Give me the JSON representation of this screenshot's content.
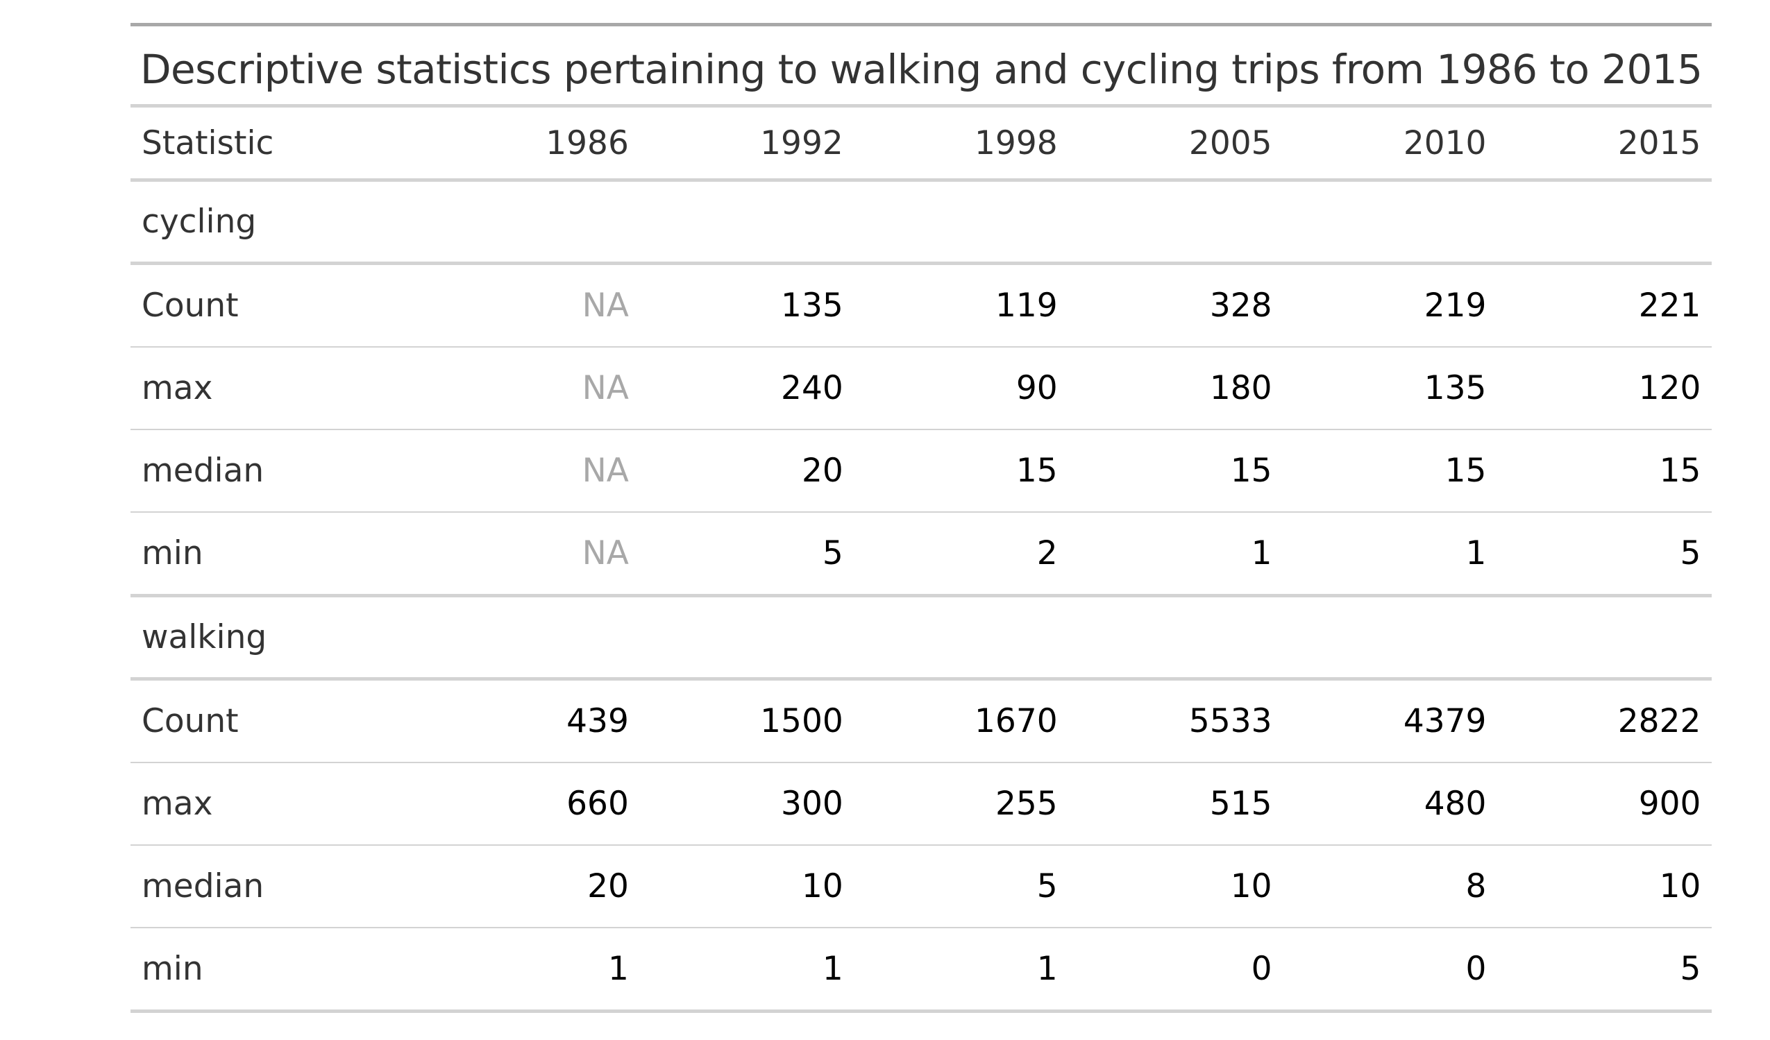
{
  "table": {
    "caption": "Descriptive statistics pertaining to walking and cycling trips from 1986 to 2015",
    "columns": [
      "Statistic",
      "1986",
      "1992",
      "1998",
      "2005",
      "2010",
      "2015"
    ],
    "groups": [
      {
        "name": "cycling",
        "rows": [
          {
            "stat": "Count",
            "values": [
              "NA",
              "135",
              "119",
              "328",
              "219",
              "221"
            ]
          },
          {
            "stat": "max",
            "values": [
              "NA",
              "240",
              "90",
              "180",
              "135",
              "120"
            ]
          },
          {
            "stat": "median",
            "values": [
              "NA",
              "20",
              "15",
              "15",
              "15",
              "15"
            ]
          },
          {
            "stat": "min",
            "values": [
              "NA",
              "5",
              "2",
              "1",
              "1",
              "5"
            ]
          }
        ]
      },
      {
        "name": "walking",
        "rows": [
          {
            "stat": "Count",
            "values": [
              "439",
              "1500",
              "1670",
              "5533",
              "4379",
              "2822"
            ]
          },
          {
            "stat": "max",
            "values": [
              "660",
              "300",
              "255",
              "515",
              "480",
              "900"
            ]
          },
          {
            "stat": "median",
            "values": [
              "20",
              "10",
              "5",
              "10",
              "8",
              "10"
            ]
          },
          {
            "stat": "min",
            "values": [
              "1",
              "1",
              "1",
              "0",
              "0",
              "5"
            ]
          }
        ]
      }
    ],
    "colors": {
      "text": "#333333",
      "value": "#000000",
      "na": "#a8a8a8",
      "rule_heavy": "#a8a8a8",
      "rule": "#d3d3d3"
    }
  }
}
